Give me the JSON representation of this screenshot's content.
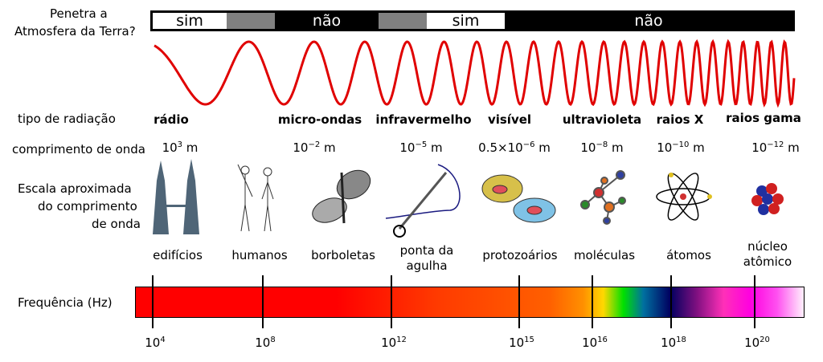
{
  "atmosphere": {
    "label_line1": "Penetra a",
    "label_line2": "Atmosfera da Terra?",
    "segments": [
      {
        "text": "sim",
        "color": "#ffffff"
      },
      {
        "text": "",
        "color": "#808080"
      },
      {
        "text": "não",
        "color": "#000000"
      },
      {
        "text": "",
        "color": "#808080"
      },
      {
        "text": "sim",
        "color": "#ffffff"
      },
      {
        "text": "não",
        "color": "#000000"
      }
    ]
  },
  "wave_color": "#e00000",
  "radiation": {
    "label": "tipo de radiação",
    "types": [
      "rádio",
      "micro-ondas",
      "infravermelho",
      "visível",
      "ultravioleta",
      "raios X",
      "raios gama"
    ]
  },
  "wavelength": {
    "label": "comprimento de onda",
    "values": [
      {
        "base": "10",
        "exp": "3",
        "unit": " m"
      },
      {
        "base": "10",
        "exp": "−2",
        "unit": " m"
      },
      {
        "base": "10",
        "exp": "−5",
        "unit": " m"
      },
      {
        "base": "0.5×10",
        "exp": "−6",
        "unit": " m"
      },
      {
        "base": "10",
        "exp": "−8",
        "unit": " m"
      },
      {
        "base": "10",
        "exp": "−10",
        "unit": " m"
      },
      {
        "base": "10",
        "exp": "−12",
        "unit": " m"
      }
    ]
  },
  "scale": {
    "label_line1": "Escala aproximada",
    "label_line2": "do comprimento",
    "label_line3": "de onda",
    "objects": [
      {
        "l1": "edifícios",
        "l2": ""
      },
      {
        "l1": "humanos",
        "l2": ""
      },
      {
        "l1": "borboletas",
        "l2": ""
      },
      {
        "l1": "ponta da",
        "l2": "agulha"
      },
      {
        "l1": "protozoários",
        "l2": ""
      },
      {
        "l1": "moléculas",
        "l2": ""
      },
      {
        "l1": "átomos",
        "l2": ""
      },
      {
        "l1": "núcleo",
        "l2": "atômico"
      }
    ]
  },
  "frequency": {
    "label": "Frequência (Hz)",
    "ticks": [
      {
        "base": "10",
        "exp": "4"
      },
      {
        "base": "10",
        "exp": "8"
      },
      {
        "base": "10",
        "exp": "12"
      },
      {
        "base": "10",
        "exp": "15"
      },
      {
        "base": "10",
        "exp": "16"
      },
      {
        "base": "10",
        "exp": "18"
      },
      {
        "base": "10",
        "exp": "20"
      }
    ]
  }
}
